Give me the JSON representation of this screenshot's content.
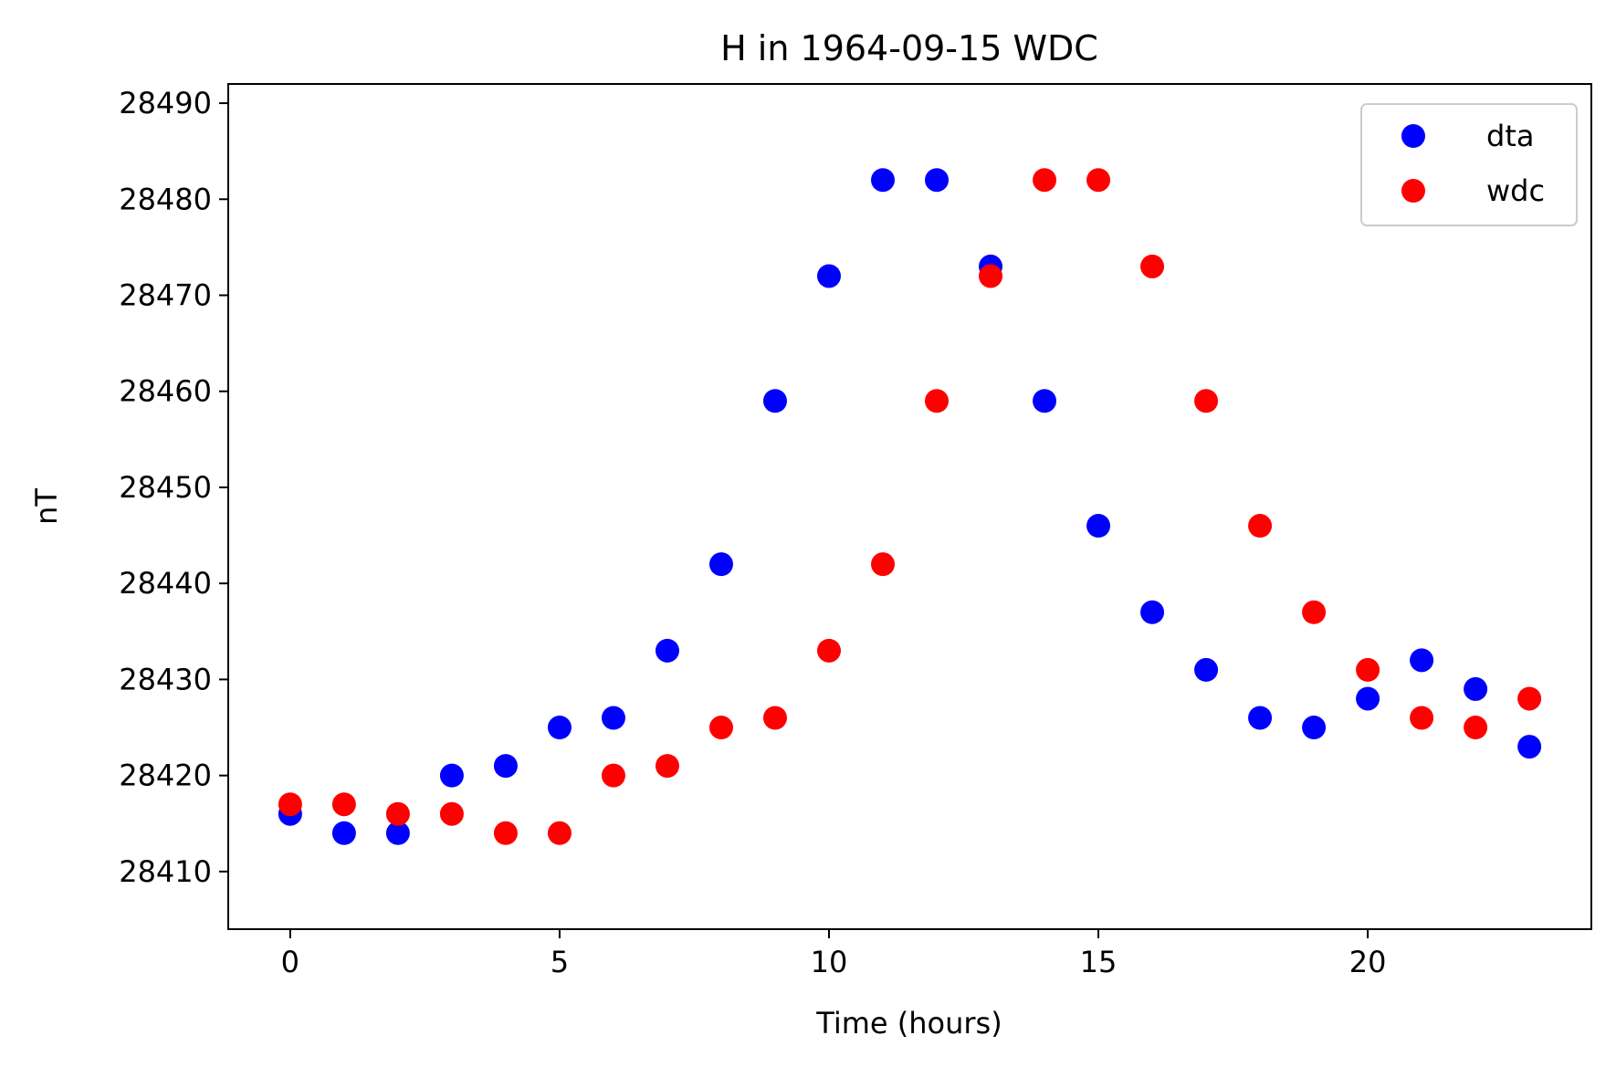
{
  "chart_data": {
    "type": "scatter",
    "title": "H in 1964-09-15 WDC",
    "xlabel": "Time (hours)",
    "ylabel": "nT",
    "xlim": [
      -1.15,
      24.15
    ],
    "ylim": [
      28404,
      28492
    ],
    "xticks": [
      0,
      5,
      10,
      15,
      20
    ],
    "yticks": [
      28410,
      28420,
      28430,
      28440,
      28450,
      28460,
      28470,
      28480,
      28490
    ],
    "grid": false,
    "legend_position": "top-right",
    "x": [
      0,
      1,
      2,
      3,
      4,
      5,
      6,
      7,
      8,
      9,
      10,
      11,
      12,
      13,
      14,
      15,
      16,
      17,
      18,
      19,
      20,
      21,
      22,
      23
    ],
    "series": [
      {
        "name": "dta",
        "color": "#0000ff",
        "values": [
          28416,
          28414,
          28414,
          28420,
          28421,
          28425,
          28426,
          28433,
          28442,
          28459,
          28472,
          28482,
          28482,
          28473,
          28459,
          28446,
          28437,
          28431,
          28426,
          28425,
          28428,
          28432,
          28429,
          28423
        ]
      },
      {
        "name": "wdc",
        "color": "#ff0000",
        "values": [
          28417,
          28417,
          28416,
          28416,
          28414,
          28414,
          28420,
          28421,
          28425,
          28426,
          28433,
          28442,
          28459,
          28472,
          28482,
          28482,
          28473,
          28459,
          28446,
          28437,
          28431,
          28426,
          28425,
          28428
        ]
      }
    ]
  }
}
